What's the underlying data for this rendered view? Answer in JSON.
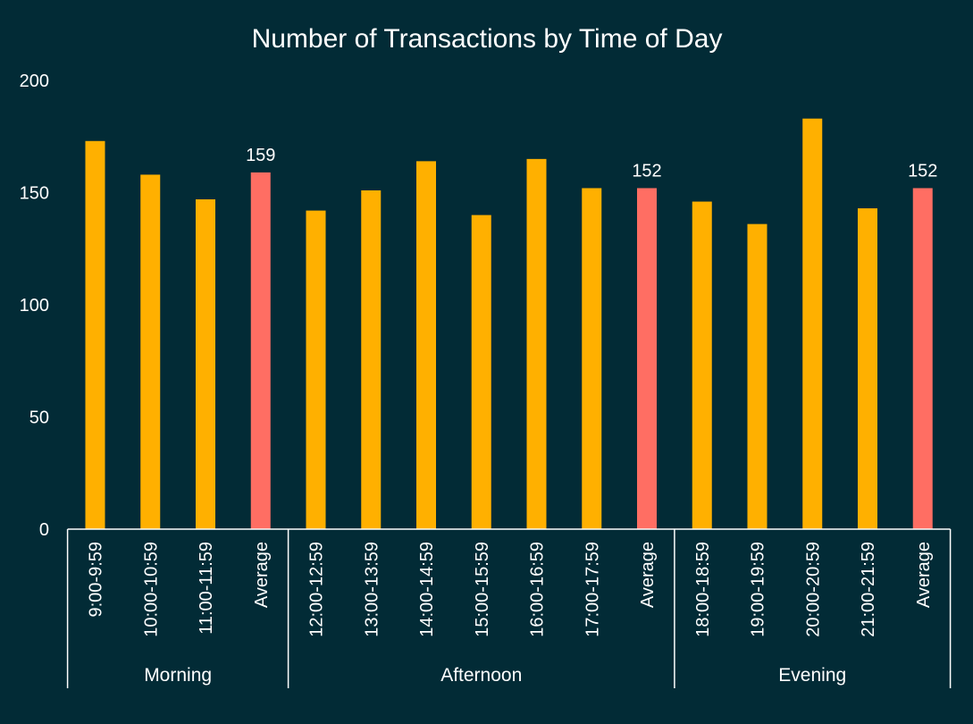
{
  "chart_data": {
    "type": "bar",
    "title": "Number of Transactions by Time of Day",
    "ylim": [
      0,
      200
    ],
    "yticks": [
      0,
      50,
      100,
      150,
      200
    ],
    "grid": false,
    "legend": "none",
    "colors": {
      "background": "#022b36",
      "bar": "#ffb000",
      "average": "#ff6e63",
      "text": "#ffffff",
      "axis": "#ffffff"
    },
    "groups": [
      {
        "label": "Morning",
        "bars": [
          {
            "category": "9:00-9:59",
            "value": 173,
            "kind": "bar"
          },
          {
            "category": "10:00-10:59",
            "value": 158,
            "kind": "bar"
          },
          {
            "category": "11:00-11:59",
            "value": 147,
            "kind": "bar"
          },
          {
            "category": "Average",
            "value": 159,
            "kind": "average",
            "label": "159"
          }
        ]
      },
      {
        "label": "Afternoon",
        "bars": [
          {
            "category": "12:00-12:59",
            "value": 142,
            "kind": "bar"
          },
          {
            "category": "13:00-13:59",
            "value": 151,
            "kind": "bar"
          },
          {
            "category": "14:00-14:59",
            "value": 164,
            "kind": "bar"
          },
          {
            "category": "15:00-15:59",
            "value": 140,
            "kind": "bar"
          },
          {
            "category": "16:00-16:59",
            "value": 165,
            "kind": "bar"
          },
          {
            "category": "17:00-17:59",
            "value": 152,
            "kind": "bar"
          },
          {
            "category": "Average",
            "value": 152,
            "kind": "average",
            "label": "152"
          }
        ]
      },
      {
        "label": "Evening",
        "bars": [
          {
            "category": "18:00-18:59",
            "value": 146,
            "kind": "bar"
          },
          {
            "category": "19:00-19:59",
            "value": 136,
            "kind": "bar"
          },
          {
            "category": "20:00-20:59",
            "value": 183,
            "kind": "bar"
          },
          {
            "category": "21:00-21:59",
            "value": 143,
            "kind": "bar"
          },
          {
            "category": "Average",
            "value": 152,
            "kind": "average",
            "label": "152"
          }
        ]
      }
    ]
  }
}
